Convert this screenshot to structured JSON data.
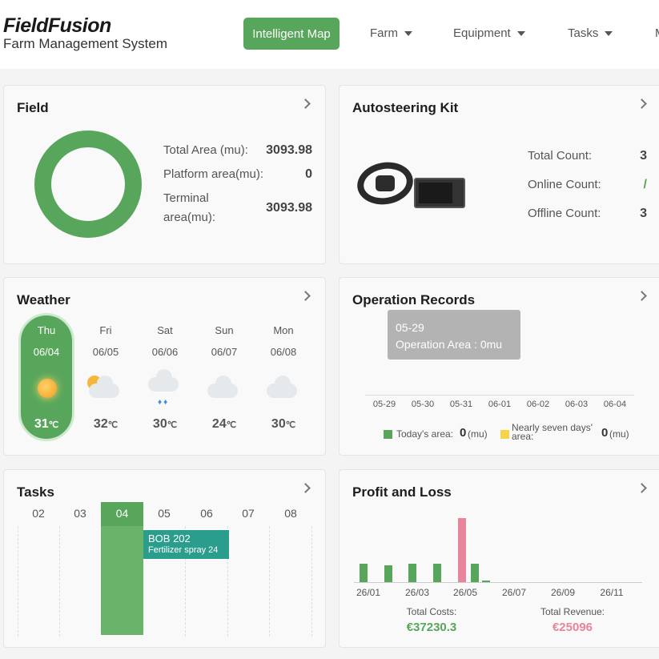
{
  "header": {
    "brand": "FieldFusion",
    "subtitle": "Farm Management System",
    "active_button": "Intelligent Map",
    "nav": [
      {
        "label": "Farm"
      },
      {
        "label": "Equipment"
      },
      {
        "label": "Tasks"
      },
      {
        "label": "M"
      }
    ]
  },
  "field": {
    "title": "Field",
    "total_area_label": "Total Area (mu):",
    "total_area": "3093.98",
    "platform_label": "Platform area(mu):",
    "platform_area": "0",
    "terminal_label_1": "Terminal",
    "terminal_label_2": "area(mu):",
    "terminal_area": "3093.98",
    "ring_color": "#58a65c"
  },
  "autosteering": {
    "title": "Autosteering Kit",
    "total_label": "Total Count:",
    "total_value": "3",
    "online_label": "Online Count:",
    "online_value": "/",
    "offline_label": "Offline Count:",
    "offline_value": "3"
  },
  "weather": {
    "title": "Weather",
    "days": [
      {
        "day": "Thu",
        "date": "06/04",
        "temp": "31",
        "icon": "sun-icon"
      },
      {
        "day": "Fri",
        "date": "06/05",
        "temp": "32",
        "icon": "partly-cloudy-icon"
      },
      {
        "day": "Sat",
        "date": "06/06",
        "temp": "30",
        "icon": "rain-icon"
      },
      {
        "day": "Sun",
        "date": "06/07",
        "temp": "24",
        "icon": "cloud-icon"
      },
      {
        "day": "Mon",
        "date": "06/08",
        "temp": "30",
        "icon": "cloud-icon"
      }
    ],
    "unit": "℃"
  },
  "operation": {
    "title": "Operation Records",
    "tooltip_date": "05-29",
    "tooltip_text": "Operation Area : 0mu",
    "dates": [
      "05-29",
      "05-30",
      "05-31",
      "06-01",
      "06-02",
      "06-03",
      "06-04"
    ],
    "legend_today": "Today's area:",
    "legend_today_value": "0",
    "legend_week_1": "Nearly seven days'",
    "legend_week_2": "area:",
    "legend_week_value": "0",
    "unit": "(mu)",
    "today_color": "#58a65c",
    "week_color": "#f5d547"
  },
  "tasks": {
    "title": "Tasks",
    "days": [
      "02",
      "03",
      "04",
      "05",
      "06",
      "07",
      "08"
    ],
    "task_name": "BOB 202",
    "task_desc": "Fertilizer spray 24"
  },
  "profit": {
    "title": "Profit and Loss",
    "ticks": [
      "26/01",
      "26/03",
      "26/05",
      "26/07",
      "26/09",
      "26/11"
    ],
    "costs_label": "Total Costs:",
    "costs_value": "€37230.3",
    "revenue_label": "Total Revenue:",
    "revenue_value": "€25096",
    "cost_color": "#58a65c",
    "revenue_color": "#e8849c"
  },
  "chart_data": {
    "type": "bar",
    "categories": [
      "26/01",
      "26/02",
      "26/03",
      "26/04",
      "26/05",
      "26/06"
    ],
    "series": [
      {
        "name": "Total Costs",
        "values": [
          23,
          21,
          23,
          23,
          23,
          2
        ]
      },
      {
        "name": "Total Revenue",
        "values": [
          0,
          0,
          0,
          0,
          80,
          0
        ]
      }
    ]
  }
}
